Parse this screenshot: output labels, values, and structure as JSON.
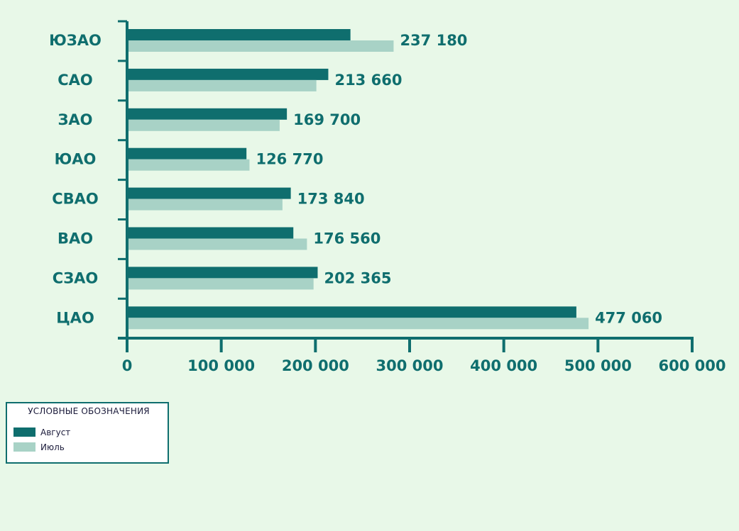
{
  "chart_data": {
    "type": "bar",
    "orientation": "horizontal",
    "categories": [
      "ЮЗАО",
      "САО",
      "ЗАО",
      "ЮАО",
      "СВАО",
      "ВАО",
      "СЗАО",
      "ЦАО"
    ],
    "series": [
      {
        "name": "Август",
        "color": "#0f6e6e",
        "values": [
          237180,
          213660,
          169700,
          126770,
          173840,
          176560,
          202365,
          477060
        ]
      },
      {
        "name": "Июль",
        "color": "#a8d2c6",
        "values": [
          283000,
          201000,
          162000,
          130000,
          165000,
          191000,
          198000,
          490000
        ]
      }
    ],
    "data_labels": [
      "237 180",
      "213 660",
      "169 700",
      "126 770",
      "173 840",
      "176 560",
      "202 365",
      "477 060"
    ],
    "xlim": [
      0,
      600000
    ],
    "x_ticks": [
      {
        "value": 0,
        "label": "0"
      },
      {
        "value": 100000,
        "label": "100 000"
      },
      {
        "value": 200000,
        "label": "200 000"
      },
      {
        "value": 300000,
        "label": "300 000"
      },
      {
        "value": 400000,
        "label": "400 000"
      },
      {
        "value": 500000,
        "label": "500 000"
      },
      {
        "value": 600000,
        "label": "600 000"
      }
    ],
    "grid": false,
    "legend_position": "bottom-left",
    "axis_color": "#0f6e6e"
  },
  "legend": {
    "title": "УСЛОВНЫЕ ОБОЗНАЧЕНИЯ",
    "items": [
      {
        "label": "Август",
        "color": "#0f6e6e"
      },
      {
        "label": "Июль",
        "color": "#a8d2c6"
      }
    ]
  }
}
